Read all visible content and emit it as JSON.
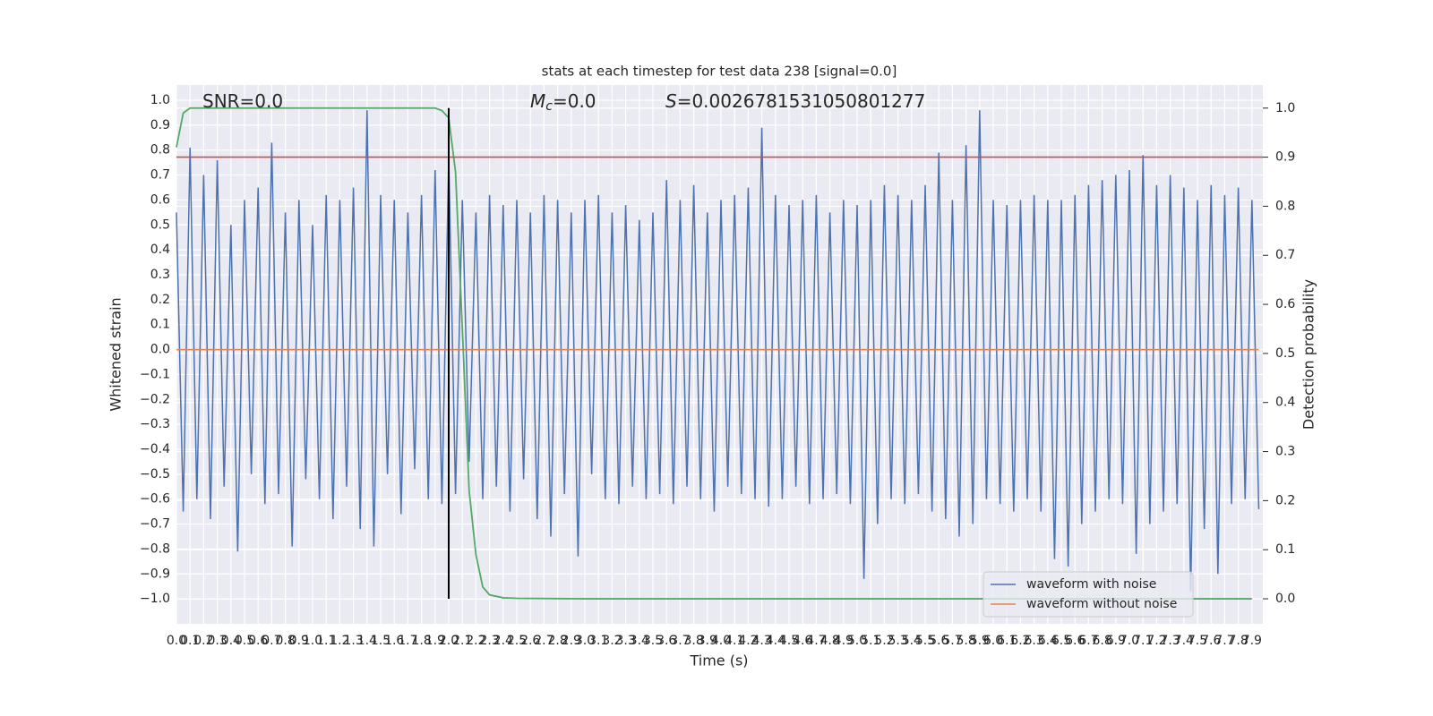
{
  "chart_data": {
    "type": "line",
    "title": "stats at each timestep for test data 238 [signal=0.0]",
    "x_label": "Time (s)",
    "y_label": "Whitened strain",
    "y2_label": "Detection probability",
    "grid": true,
    "legend": "lower right",
    "background": "#eaeaf2",
    "xlim": [
      0,
      7.98
    ],
    "ylim": [
      -1.1,
      1.061
    ],
    "y2lim": [
      -0.051,
      1.047
    ],
    "xticks": [
      {
        "value": 0,
        "label": "0.0"
      },
      0.1,
      0.2,
      0.3,
      0.4,
      0.5,
      0.6,
      0.7,
      0.8,
      0.9,
      {
        "value": 1,
        "label": "1.0"
      },
      1.1,
      1.2,
      1.3,
      1.4,
      1.5,
      1.6,
      1.7,
      1.8,
      1.9,
      {
        "value": 2,
        "label": "2.0"
      },
      2.1,
      2.2,
      2.3,
      2.4,
      2.5,
      2.6,
      2.7,
      2.8,
      2.9,
      {
        "value": 3,
        "label": "3.0"
      },
      3.1,
      3.2,
      3.3,
      3.4,
      3.5,
      3.6,
      3.7,
      3.8,
      3.9,
      {
        "value": 4,
        "label": "4.0"
      },
      4.1,
      4.2,
      4.3,
      4.4,
      4.5,
      4.6,
      4.7,
      4.8,
      4.9,
      {
        "value": 5,
        "label": "5.0"
      },
      5.1,
      5.2,
      5.3,
      5.4,
      5.5,
      5.6,
      5.7,
      5.8,
      5.9,
      {
        "value": 6,
        "label": "6.0"
      },
      6.1,
      6.2,
      6.3,
      6.4,
      6.5,
      6.6,
      6.7,
      6.8,
      6.9,
      {
        "value": 7,
        "label": "7.0"
      },
      7.1,
      7.2,
      7.3,
      7.4,
      7.5,
      7.6,
      7.7,
      7.8,
      7.9
    ],
    "yticks": [
      {
        "value": -1,
        "label": "−1.0"
      },
      {
        "value": -0.9,
        "label": "−0.9"
      },
      {
        "value": -0.8,
        "label": "−0.8"
      },
      {
        "value": -0.7,
        "label": "−0.7"
      },
      {
        "value": -0.6,
        "label": "−0.6"
      },
      {
        "value": -0.5,
        "label": "−0.5"
      },
      {
        "value": -0.4,
        "label": "−0.4"
      },
      {
        "value": -0.3,
        "label": "−0.3"
      },
      {
        "value": -0.2,
        "label": "−0.2"
      },
      {
        "value": -0.1,
        "label": "−0.1"
      },
      {
        "value": 0,
        "label": "0.0"
      },
      0.1,
      0.2,
      0.3,
      0.4,
      0.5,
      0.6,
      0.7,
      0.8,
      0.9,
      {
        "value": 1,
        "label": "1.0"
      }
    ],
    "y2ticks": [
      {
        "value": 0,
        "label": "0.0"
      },
      0.1,
      0.2,
      0.3,
      0.4,
      0.5,
      0.6,
      0.7,
      0.8,
      0.9,
      {
        "value": 1,
        "label": "1.0"
      }
    ],
    "annotations": [
      {
        "text": "SNR=0.0"
      },
      {
        "symbol": "M",
        "subscript": "c",
        "text": "=0.0"
      },
      {
        "symbol": "S",
        "text": "=0.0026781531050801277"
      }
    ],
    "series": [
      {
        "name": "waveform with noise",
        "color": "#4c72b0",
        "x": [
          0,
          0.05,
          0.1,
          0.15,
          0.2,
          0.25,
          0.3,
          0.35,
          0.4,
          0.45,
          0.5,
          0.55,
          0.6,
          0.65,
          0.7,
          0.75,
          0.8,
          0.85,
          0.9,
          0.95,
          1,
          1.05,
          1.1,
          1.15,
          1.2,
          1.25,
          1.3,
          1.35,
          1.4,
          1.45,
          1.5,
          1.55,
          1.6,
          1.65,
          1.7,
          1.75,
          1.8,
          1.85,
          1.9,
          1.95,
          2,
          2.05,
          2.1,
          2.15,
          2.2,
          2.25,
          2.3,
          2.35,
          2.4,
          2.45,
          2.5,
          2.55,
          2.6,
          2.65,
          2.7,
          2.75,
          2.8,
          2.85,
          2.9,
          2.95,
          3,
          3.05,
          3.1,
          3.15,
          3.2,
          3.25,
          3.3,
          3.35,
          3.4,
          3.45,
          3.5,
          3.55,
          3.6,
          3.65,
          3.7,
          3.75,
          3.8,
          3.85,
          3.9,
          3.95,
          4,
          4.05,
          4.1,
          4.15,
          4.2,
          4.25,
          4.3,
          4.35,
          4.4,
          4.45,
          4.5,
          4.55,
          4.6,
          4.65,
          4.7,
          4.75,
          4.8,
          4.85,
          4.9,
          4.95,
          5,
          5.05,
          5.1,
          5.15,
          5.2,
          5.25,
          5.3,
          5.35,
          5.4,
          5.45,
          5.5,
          5.55,
          5.6,
          5.65,
          5.7,
          5.75,
          5.8,
          5.85,
          5.9,
          5.95,
          6,
          6.05,
          6.1,
          6.15,
          6.2,
          6.25,
          6.3,
          6.35,
          6.4,
          6.45,
          6.5,
          6.55,
          6.6,
          6.65,
          6.7,
          6.75,
          6.8,
          6.85,
          6.9,
          6.95,
          7,
          7.05,
          7.1,
          7.15,
          7.2,
          7.25,
          7.3,
          7.35,
          7.4,
          7.45,
          7.5,
          7.55,
          7.6,
          7.65,
          7.7,
          7.75,
          7.8,
          7.85,
          7.9,
          7.95
        ],
        "values": [
          0.55,
          -0.65,
          0.81,
          -0.6,
          0.7,
          -0.68,
          0.76,
          -0.55,
          0.5,
          -0.81,
          0.6,
          -0.5,
          0.65,
          -0.62,
          0.83,
          -0.58,
          0.55,
          -0.79,
          0.6,
          -0.52,
          0.5,
          -0.6,
          0.62,
          -0.68,
          0.6,
          -0.55,
          0.65,
          -0.72,
          0.96,
          -0.79,
          0.62,
          -0.5,
          0.6,
          -0.66,
          0.55,
          -0.48,
          0.62,
          -0.6,
          0.72,
          -0.62,
          0.77,
          -0.58,
          0.6,
          -0.45,
          0.55,
          -0.6,
          0.62,
          -0.55,
          0.58,
          -0.65,
          0.6,
          -0.52,
          0.55,
          -0.68,
          0.62,
          -0.75,
          0.6,
          -0.58,
          0.55,
          -0.83,
          0.6,
          -0.5,
          0.62,
          -0.6,
          0.55,
          -0.62,
          0.58,
          -0.55,
          0.52,
          -0.6,
          0.55,
          -0.58,
          0.68,
          -0.62,
          0.6,
          -0.55,
          0.66,
          -0.6,
          0.55,
          -0.65,
          0.6,
          -0.55,
          0.62,
          -0.58,
          0.65,
          -0.6,
          0.89,
          -0.63,
          0.62,
          -0.6,
          0.58,
          -0.55,
          0.6,
          -0.62,
          0.62,
          -0.6,
          0.55,
          -0.58,
          0.6,
          -0.62,
          0.58,
          -0.92,
          0.6,
          -0.7,
          0.66,
          -0.6,
          0.62,
          -0.62,
          0.6,
          -0.58,
          0.66,
          -0.65,
          0.79,
          -0.68,
          0.6,
          -0.75,
          0.82,
          -0.7,
          0.96,
          -0.6,
          0.6,
          -0.62,
          0.58,
          -0.65,
          0.6,
          -0.6,
          0.62,
          -0.65,
          0.6,
          -0.84,
          0.6,
          -0.87,
          0.62,
          -0.7,
          0.66,
          -0.65,
          0.68,
          -0.6,
          0.7,
          -0.62,
          0.72,
          -0.82,
          0.78,
          -0.7,
          0.66,
          -0.65,
          0.7,
          -0.62,
          0.65,
          -0.97,
          0.6,
          -0.72,
          0.66,
          -0.9,
          0.62,
          -0.62,
          0.65,
          -0.6,
          0.6,
          -0.64
        ]
      },
      {
        "name": "waveform without noise",
        "color": "#dd8452",
        "x": [
          0,
          7.95
        ],
        "values": [
          0,
          0
        ]
      }
    ],
    "probability": {
      "axis": "y2",
      "color": "#55a868",
      "x": [
        0,
        0.05,
        0.1,
        0.2,
        0.3,
        0.4,
        0.5,
        0.6,
        0.7,
        0.8,
        0.9,
        1,
        1.1,
        1.2,
        1.3,
        1.4,
        1.5,
        1.6,
        1.7,
        1.8,
        1.9,
        1.95,
        2,
        2.05,
        2.1,
        2.15,
        2.2,
        2.25,
        2.3,
        2.4,
        2.5,
        3,
        4,
        5,
        6,
        7,
        7.9
      ],
      "values": [
        0.92,
        0.99,
        1,
        1,
        1,
        1,
        1,
        1,
        1,
        1,
        1,
        1,
        1,
        1,
        1,
        1,
        1,
        1,
        1,
        1,
        1,
        0.995,
        0.98,
        0.87,
        0.55,
        0.22,
        0.09,
        0.024,
        0.008,
        0.002,
        0.001,
        0,
        0,
        0,
        0,
        0,
        0
      ]
    },
    "threshold": {
      "axis": "y2",
      "value": 0.9,
      "color": "#c44e52"
    },
    "vline": {
      "x": 2,
      "axis": "y2",
      "span": [
        0,
        1
      ],
      "color": "#000000"
    }
  }
}
